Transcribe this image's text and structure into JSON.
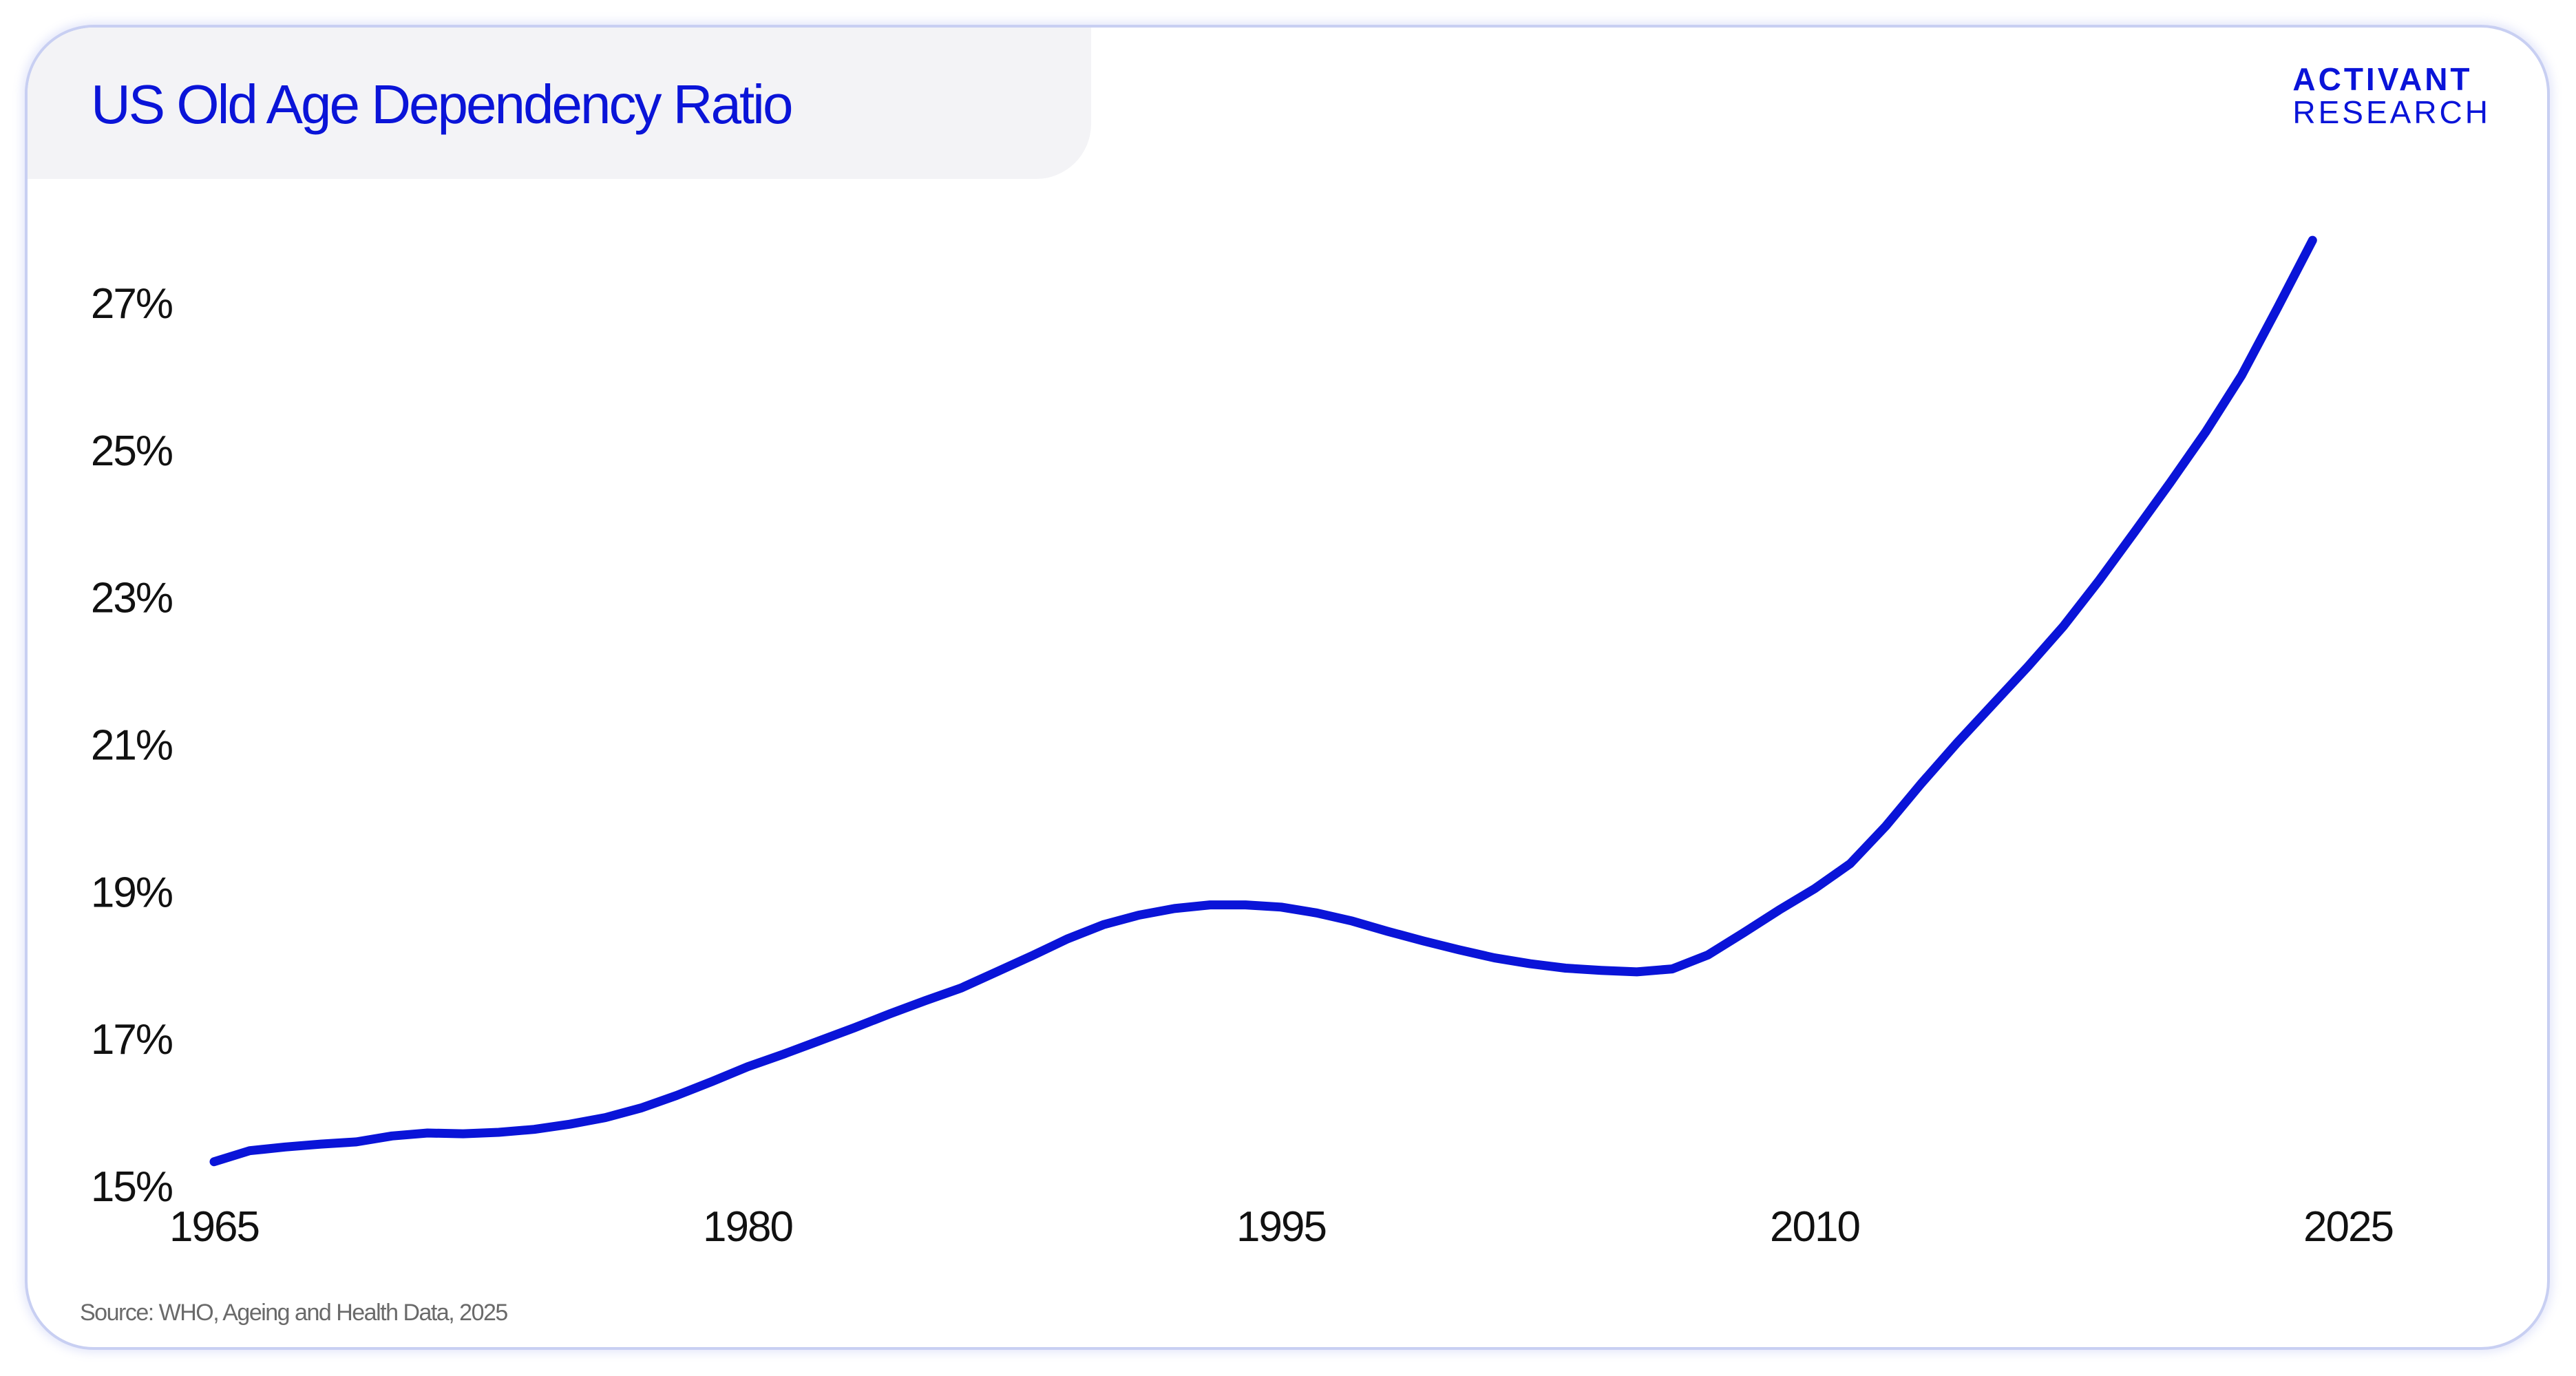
{
  "header": {
    "title": "US Old Age Dependency Ratio"
  },
  "logo": {
    "line1": "ACTIVANT",
    "line2": "RESEARCH"
  },
  "source": "Source: WHO, Ageing and Health Data, 2025",
  "colors": {
    "line": "#0a14d8",
    "title": "#0a14d8",
    "title_tab_bg": "#f3f3f6",
    "card_border": "#c8cff2"
  },
  "chart_data": {
    "type": "line",
    "title": "US Old Age Dependency Ratio",
    "xlabel": "",
    "ylabel": "",
    "xlim": [
      1965,
      2025
    ],
    "ylim": [
      15,
      28
    ],
    "x_ticks": [
      1965,
      1980,
      1995,
      2010,
      2025
    ],
    "x_tick_labels": [
      "1965",
      "1980",
      "1995",
      "2010",
      "2025"
    ],
    "y_ticks": [
      15,
      17,
      19,
      21,
      23,
      25,
      27
    ],
    "y_tick_labels": [
      "15%",
      "17%",
      "19%",
      "21%",
      "23%",
      "25%",
      "27%"
    ],
    "grid": false,
    "legend": "none",
    "series": [
      {
        "x": [
          1965,
          1966,
          1967,
          1968,
          1969,
          1970,
          1971,
          1972,
          1973,
          1974,
          1975,
          1976,
          1977,
          1978,
          1979,
          1980,
          1981,
          1982,
          1983,
          1984,
          1985,
          1986,
          1987,
          1988,
          1989,
          1990,
          1991,
          1992,
          1993,
          1994,
          1995,
          1996,
          1997,
          1998,
          1999,
          2000,
          2001,
          2002,
          2003,
          2004,
          2005,
          2006,
          2007,
          2008,
          2009,
          2010,
          2011,
          2012,
          2013,
          2014,
          2015,
          2016,
          2017,
          2018,
          2019,
          2020,
          2021,
          2022,
          2023,
          2024
        ],
        "values": [
          15.33,
          15.48,
          15.53,
          15.57,
          15.6,
          15.68,
          15.72,
          15.71,
          15.73,
          15.77,
          15.84,
          15.93,
          16.06,
          16.23,
          16.42,
          16.62,
          16.79,
          16.97,
          17.15,
          17.34,
          17.52,
          17.69,
          17.91,
          18.13,
          18.36,
          18.55,
          18.68,
          18.77,
          18.82,
          18.82,
          18.79,
          18.71,
          18.6,
          18.46,
          18.33,
          18.21,
          18.1,
          18.02,
          17.96,
          17.93,
          17.91,
          17.95,
          18.14,
          18.44,
          18.75,
          19.04,
          19.38,
          19.89,
          20.47,
          21.02,
          21.54,
          22.06,
          22.61,
          23.23,
          23.89,
          24.56,
          25.25,
          26.01,
          26.92,
          27.85
        ]
      }
    ]
  }
}
